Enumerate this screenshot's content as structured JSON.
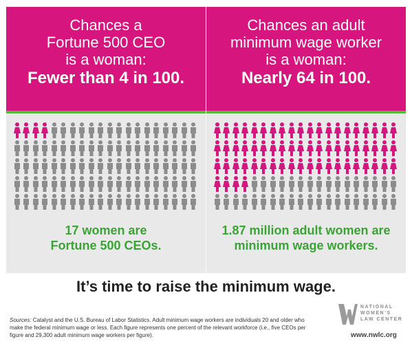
{
  "colors": {
    "pink": "#d6157f",
    "gray_figure": "#8c8c8c",
    "green": "#3aa435",
    "divider_green": "#5cb83a",
    "panel_bg": "#e9e9e9"
  },
  "icon": "person-figure-icon",
  "left_panel": {
    "header_lines": [
      "Chances a",
      "Fortune 500 CEO",
      "is a woman:"
    ],
    "header_bold": "Fewer than 4 in 100.",
    "women_percent": 3.4,
    "total_figures": 100,
    "caption_lines": [
      "17 women are",
      "Fortune 500 CEOs."
    ]
  },
  "right_panel": {
    "header_lines": [
      "Chances an adult",
      "minimum wage worker",
      "is a woman:"
    ],
    "header_bold": "Nearly 64 in 100.",
    "women_percent": 63.5,
    "total_figures": 100,
    "caption_lines": [
      "1.87 million adult women are",
      "minimum wage workers."
    ]
  },
  "tagline": "It’s time to raise the minimum wage.",
  "sources": {
    "label": "Sources:",
    "text": " Catalyst and the U.S. Bureau of Labor Statistics.  Adult minimum wage workers are individuals 20 and older who make the federal minimum wage or less.  Each figure represents one percent of the relevant workforce (i.e., five CEOs per figure and 29,300 adult minimum wage workers per figure)."
  },
  "logo": {
    "lines": [
      "NATIONAL",
      "WOMEN’S",
      "LAW CENTER"
    ]
  },
  "website": "www.nwlc.org"
}
